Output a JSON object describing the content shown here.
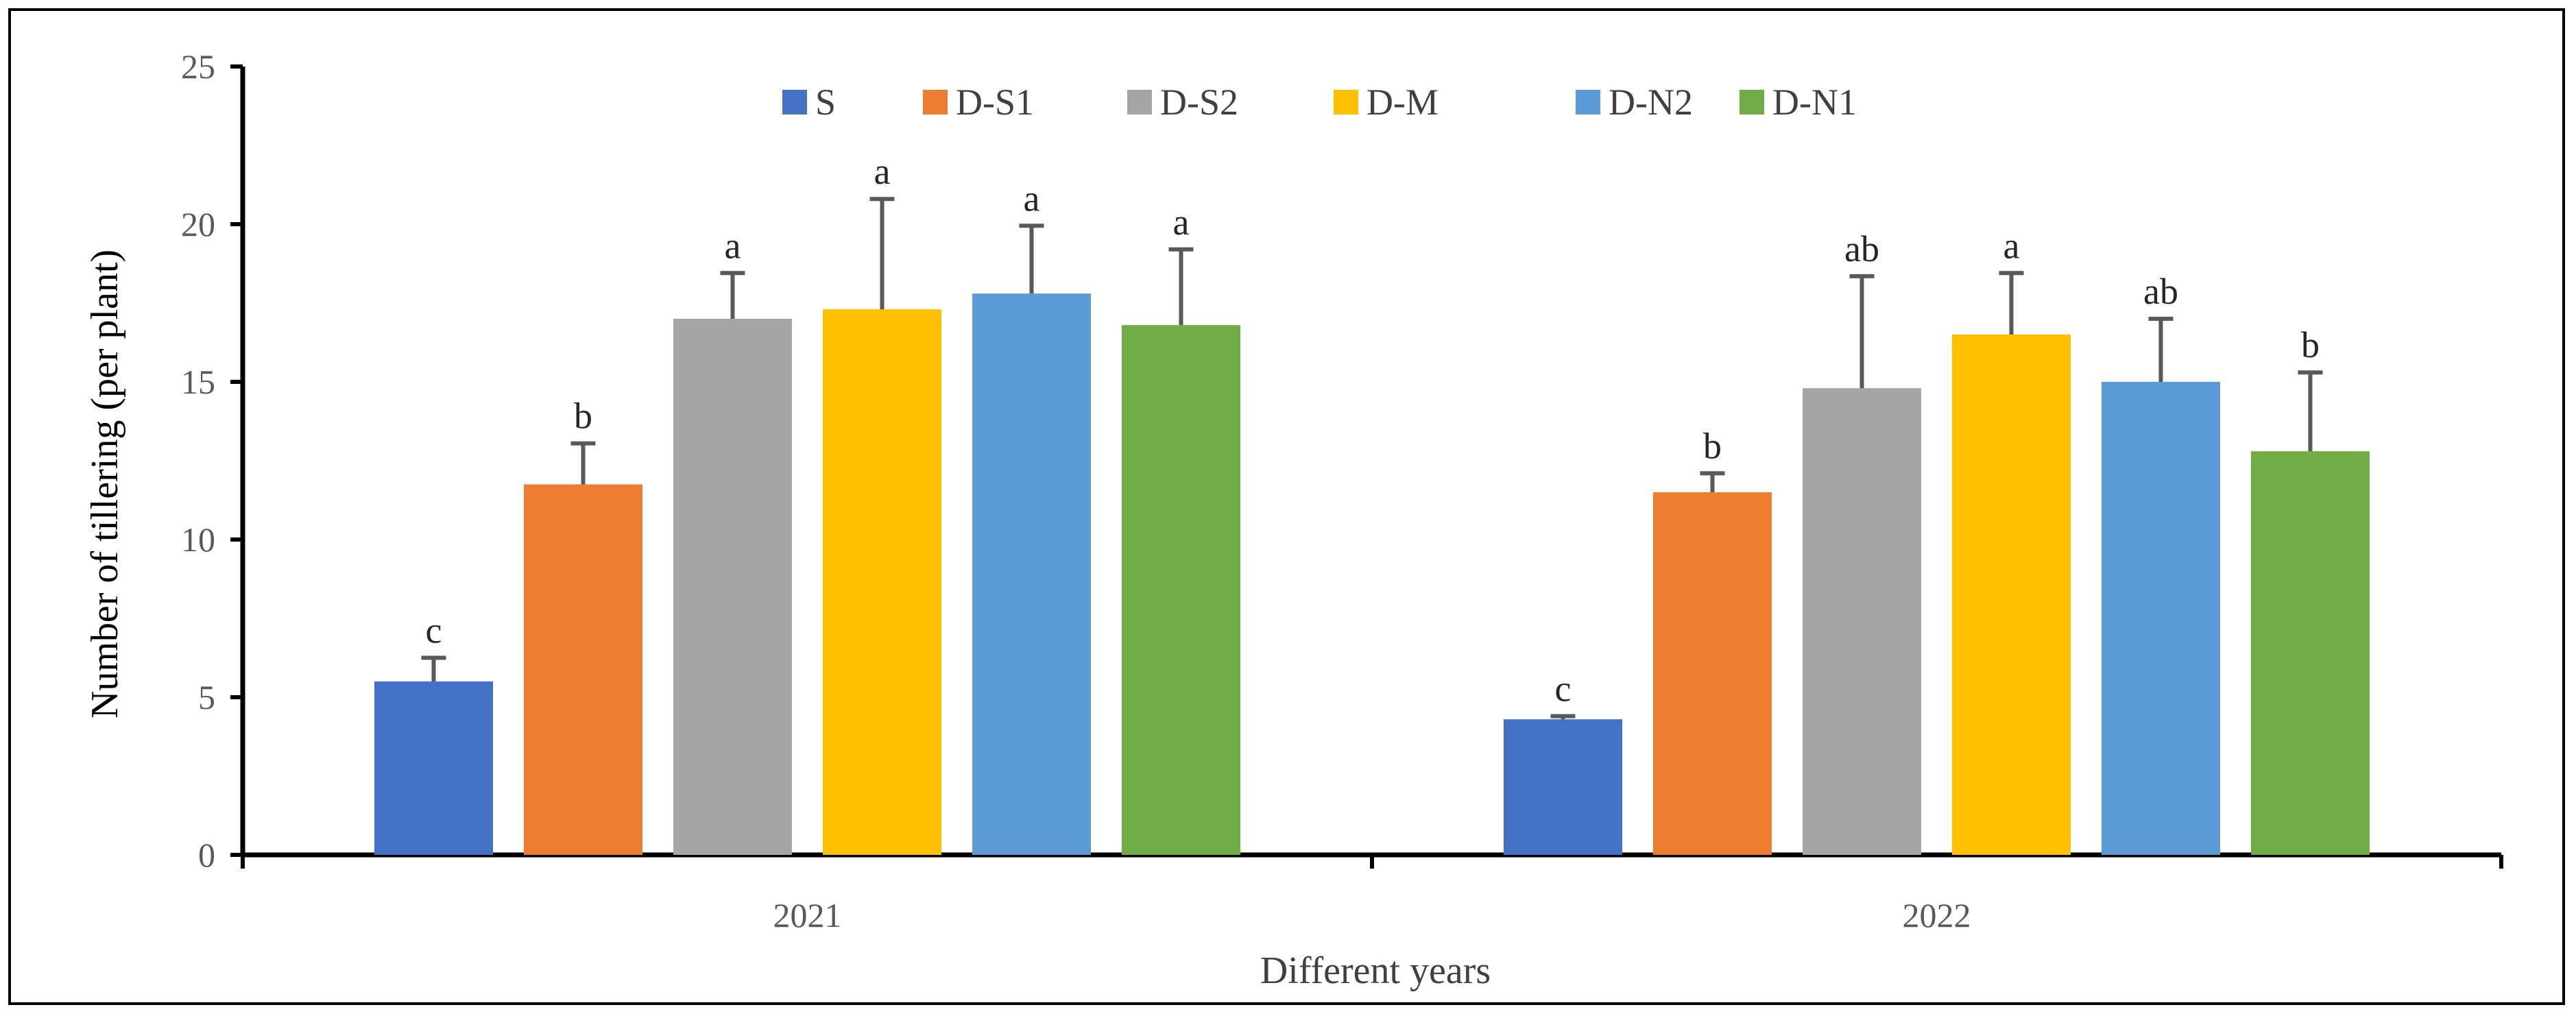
{
  "chart_data": {
    "type": "bar",
    "title": "",
    "xlabel": "Different years",
    "ylabel": "Number of tillering (per plant)",
    "ylim": [
      0,
      25
    ],
    "yticks": [
      0,
      5,
      10,
      15,
      20,
      25
    ],
    "categories": [
      "2021",
      "2022"
    ],
    "legend_position": "top",
    "series": [
      {
        "name": "S",
        "color": "#4472C4",
        "values": [
          5.5,
          4.3
        ],
        "errors": [
          0.75,
          0.1
        ],
        "labels": [
          "c",
          "c"
        ]
      },
      {
        "name": "D-S1",
        "color": "#ED7D31",
        "values": [
          11.75,
          11.5
        ],
        "errors": [
          1.3,
          0.6
        ],
        "labels": [
          "b",
          "b"
        ]
      },
      {
        "name": "D-S2",
        "color": "#A5A5A5",
        "values": [
          17.0,
          14.8
        ],
        "errors": [
          1.45,
          3.55
        ],
        "labels": [
          "a",
          "ab"
        ]
      },
      {
        "name": "D-M",
        "color": "#FFC000",
        "values": [
          17.3,
          16.5
        ],
        "errors": [
          3.5,
          1.95
        ],
        "labels": [
          "a",
          "a"
        ]
      },
      {
        "name": "D-N2",
        "color": "#5B9BD5",
        "values": [
          17.8,
          15.0
        ],
        "errors": [
          2.15,
          2.0
        ],
        "labels": [
          "a",
          "ab"
        ]
      },
      {
        "name": "D-N1",
        "color": "#70AD47",
        "values": [
          16.8,
          12.8
        ],
        "errors": [
          2.4,
          2.5
        ],
        "labels": [
          "a",
          "b"
        ]
      }
    ]
  }
}
